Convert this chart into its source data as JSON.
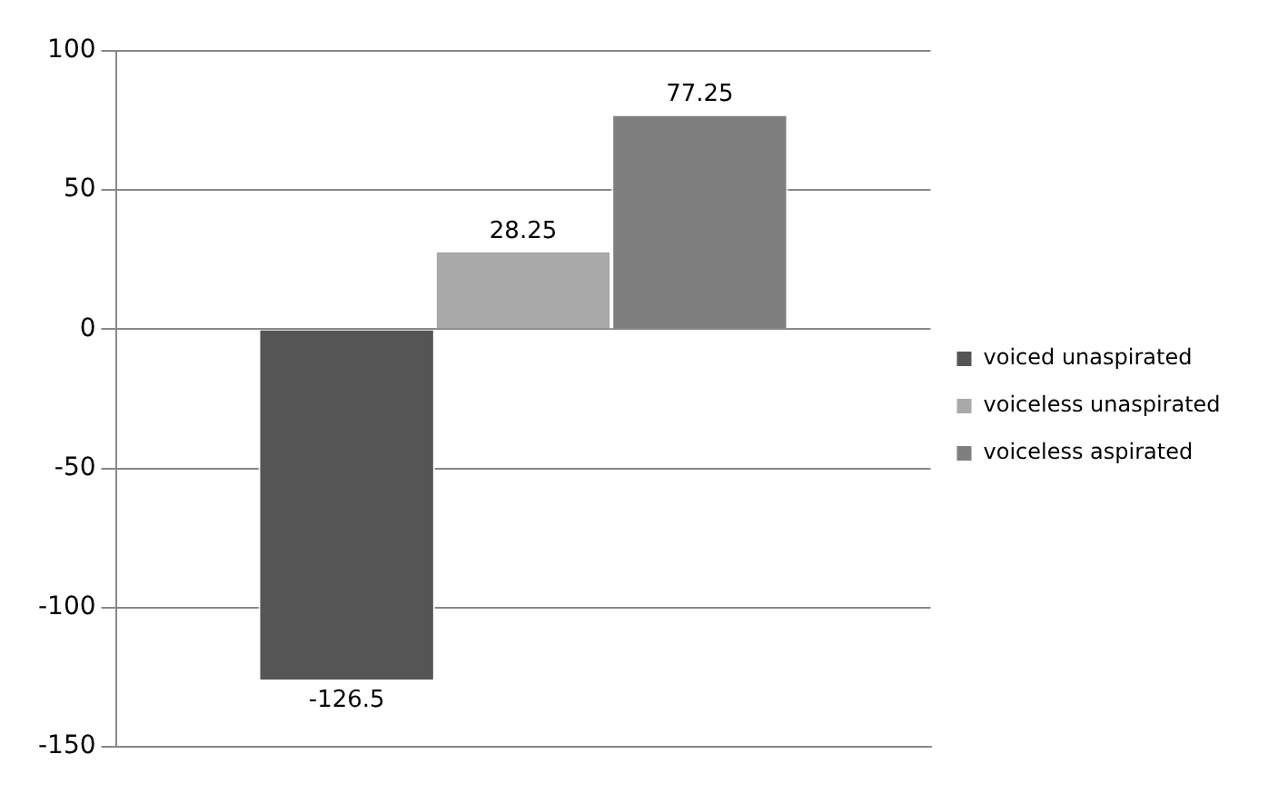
{
  "chart_data": {
    "type": "bar",
    "categories": [
      null
    ],
    "series": [
      {
        "name": "voiced unaspirated",
        "color": "#555555",
        "values": [
          -126.5
        ]
      },
      {
        "name": "voiceless unaspirated",
        "color": "#a9a9a9",
        "values": [
          28.25
        ]
      },
      {
        "name": "voiceless aspirated",
        "color": "#7f7f7f",
        "values": [
          77.25
        ]
      }
    ],
    "ylim": [
      -150,
      100
    ],
    "yticks": [
      -150,
      -100,
      -50,
      0,
      50,
      100
    ],
    "grid": "y",
    "legend": "right",
    "data_labels": true
  }
}
